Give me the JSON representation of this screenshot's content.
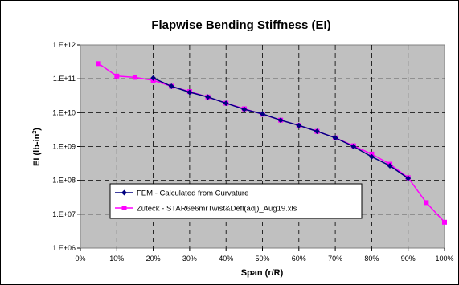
{
  "colors": {
    "plot_background": "#c0c0c0",
    "grid": "#000000",
    "series_fem": "#000080",
    "series_zuteck": "#ff00ff"
  },
  "chart_data": {
    "type": "line",
    "title": "Flapwise Bending Stiffness (EI)",
    "xlabel": "Span (r/R)",
    "ylabel_main": "EI (lb-in",
    "ylabel_sup": "2",
    "ylabel_end": ")",
    "xlim": [
      0,
      100
    ],
    "ylog": true,
    "ylim_exp": [
      6,
      12
    ],
    "x_ticks": [
      {
        "value": 0,
        "label": "0%"
      },
      {
        "value": 10,
        "label": "10%"
      },
      {
        "value": 20,
        "label": "20%"
      },
      {
        "value": 30,
        "label": "30%"
      },
      {
        "value": 40,
        "label": "40%"
      },
      {
        "value": 50,
        "label": "50%"
      },
      {
        "value": 60,
        "label": "60%"
      },
      {
        "value": 70,
        "label": "70%"
      },
      {
        "value": 80,
        "label": "80%"
      },
      {
        "value": 90,
        "label": "90%"
      },
      {
        "value": 100,
        "label": "100%"
      }
    ],
    "y_ticks": [
      {
        "value": 1000000.0,
        "label": "1.E+06"
      },
      {
        "value": 10000000.0,
        "label": "1.E+07"
      },
      {
        "value": 100000000.0,
        "label": "1.E+08"
      },
      {
        "value": 1000000000.0,
        "label": "1.E+09"
      },
      {
        "value": 10000000000.0,
        "label": "1.E+10"
      },
      {
        "value": 100000000000.0,
        "label": "1.E+11"
      },
      {
        "value": 1000000000000.0,
        "label": "1.E+12"
      }
    ],
    "grid": true,
    "legend_position": "lower-left",
    "series": [
      {
        "name": "FEM - Calculated from Curvature",
        "marker": "diamond",
        "x": [
          20,
          25,
          30,
          35,
          40,
          45,
          50,
          55,
          60,
          65,
          70,
          75,
          80,
          85,
          90
        ],
        "y": [
          105000000000.0,
          60000000000.0,
          40000000000.0,
          29000000000.0,
          19000000000.0,
          12500000000.0,
          9200000000.0,
          6000000000.0,
          4200000000.0,
          2800000000.0,
          1800000000.0,
          1000000000.0,
          500000000.0,
          270000000.0,
          115000000.0
        ]
      },
      {
        "name": "Zuteck - STAR6e6mrTwist&Defl(adj)_Aug19.xls",
        "marker": "square",
        "x": [
          5,
          10,
          15,
          20,
          25,
          30,
          35,
          40,
          45,
          50,
          55,
          60,
          65,
          70,
          75,
          80,
          85,
          90,
          95,
          100
        ],
        "y": [
          280000000000.0,
          120000000000.0,
          110000000000.0,
          90000000000.0,
          60000000000.0,
          42000000000.0,
          29000000000.0,
          19000000000.0,
          13000000000.0,
          9000000000.0,
          6000000000.0,
          4200000000.0,
          2800000000.0,
          1800000000.0,
          1050000000.0,
          600000000.0,
          300000000.0,
          120000000.0,
          22000000.0,
          5800000.0
        ]
      }
    ]
  }
}
